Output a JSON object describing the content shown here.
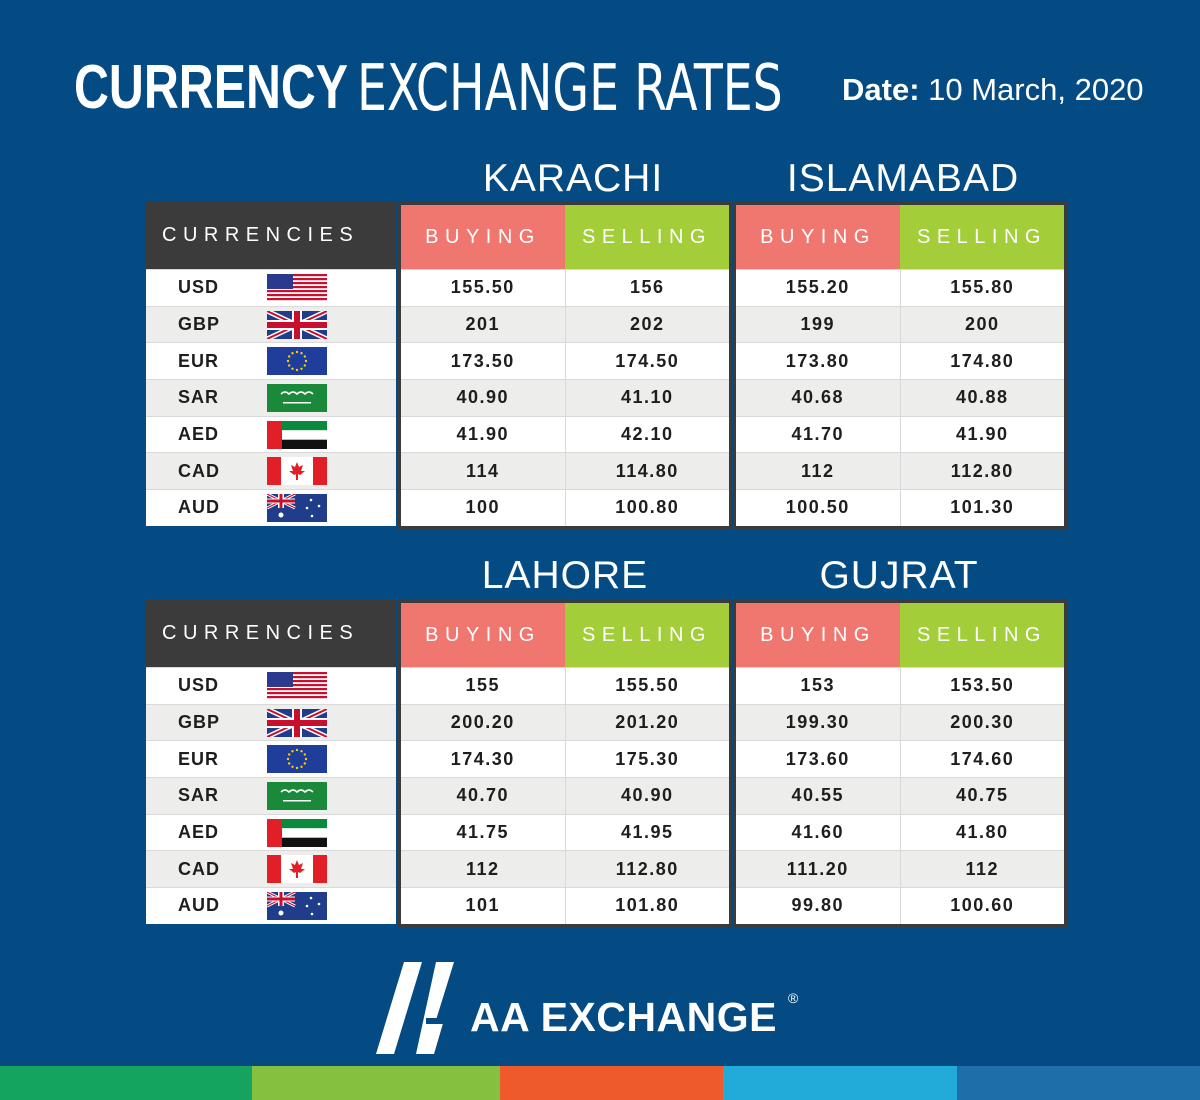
{
  "header": {
    "title_bold": "CURRENCY",
    "title_light": "EXCHANGE RATES",
    "date_label": "Date:",
    "date_value": "10 March, 2020"
  },
  "columns": {
    "currencies": "CURRENCIES",
    "buying": "BUYING",
    "selling": "SELLING"
  },
  "currencies": [
    {
      "code": "USD",
      "flag": "us-flag-icon"
    },
    {
      "code": "GBP",
      "flag": "uk-flag-icon"
    },
    {
      "code": "EUR",
      "flag": "eu-flag-icon"
    },
    {
      "code": "SAR",
      "flag": "saudi-flag-icon"
    },
    {
      "code": "AED",
      "flag": "uae-flag-icon"
    },
    {
      "code": "CAD",
      "flag": "canada-flag-icon"
    },
    {
      "code": "AUD",
      "flag": "australia-flag-icon"
    }
  ],
  "cities": {
    "karachi": {
      "name": "KARACHI",
      "rows": [
        [
          "155.50",
          "156"
        ],
        [
          "201",
          "202"
        ],
        [
          "173.50",
          "174.50"
        ],
        [
          "40.90",
          "41.10"
        ],
        [
          "41.90",
          "42.10"
        ],
        [
          "114",
          "114.80"
        ],
        [
          "100",
          "100.80"
        ]
      ]
    },
    "islamabad": {
      "name": "ISLAMABAD",
      "rows": [
        [
          "155.20",
          "155.80"
        ],
        [
          "199",
          "200"
        ],
        [
          "173.80",
          "174.80"
        ],
        [
          "40.68",
          "40.88"
        ],
        [
          "41.70",
          "41.90"
        ],
        [
          "112",
          "112.80"
        ],
        [
          "100.50",
          "101.30"
        ]
      ]
    },
    "lahore": {
      "name": "LAHORE",
      "rows": [
        [
          "155",
          "155.50"
        ],
        [
          "200.20",
          "201.20"
        ],
        [
          "174.30",
          "175.30"
        ],
        [
          "40.70",
          "40.90"
        ],
        [
          "41.75",
          "41.95"
        ],
        [
          "112",
          "112.80"
        ],
        [
          "101",
          "101.80"
        ]
      ]
    },
    "gujrat": {
      "name": "GUJRAT",
      "rows": [
        [
          "153",
          "153.50"
        ],
        [
          "199.30",
          "200.30"
        ],
        [
          "173.60",
          "174.60"
        ],
        [
          "40.55",
          "40.75"
        ],
        [
          "41.60",
          "41.80"
        ],
        [
          "111.20",
          "112"
        ],
        [
          "99.80",
          "100.60"
        ]
      ]
    }
  },
  "brand": {
    "name": "AA EXCHANGE",
    "registered": "®"
  },
  "colors": {
    "background": "#044b84",
    "buying": "#f07670",
    "selling": "#a4cd3a",
    "currencies_header": "#3b3b3b",
    "bottom_bar": [
      "#14a460",
      "#86c03f",
      "#ef5a2c",
      "#22abd8",
      "#1e6eaa"
    ]
  }
}
